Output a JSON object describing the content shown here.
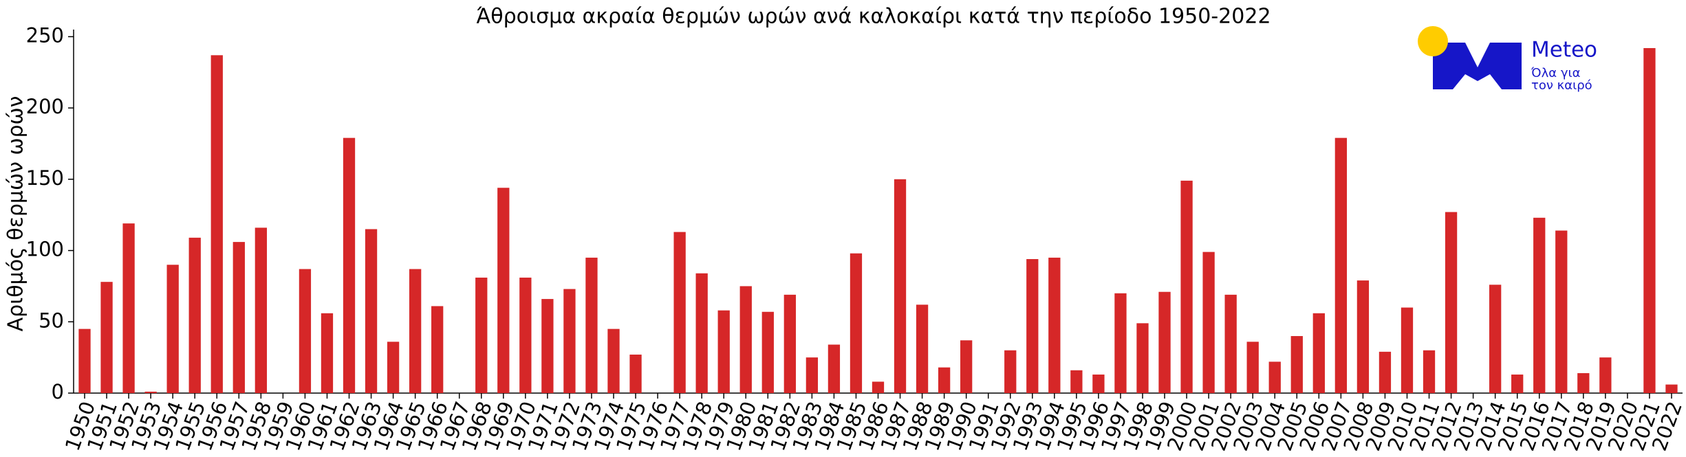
{
  "chart_data": {
    "type": "bar",
    "title": "Άθροισμα ακραία θερμών ωρών ανά καλοκαίρι κατά την περίοδο 1950-2022",
    "ylabel": "Αριθμός θερμών ωρών",
    "categories": [
      "1950",
      "1951",
      "1952",
      "1953",
      "1954",
      "1955",
      "1956",
      "1957",
      "1958",
      "1959",
      "1960",
      "1961",
      "1962",
      "1963",
      "1964",
      "1965",
      "1966",
      "1967",
      "1968",
      "1969",
      "1970",
      "1971",
      "1972",
      "1973",
      "1974",
      "1975",
      "1976",
      "1977",
      "1978",
      "1979",
      "1980",
      "1981",
      "1982",
      "1983",
      "1984",
      "1985",
      "1986",
      "1987",
      "1988",
      "1989",
      "1990",
      "1991",
      "1992",
      "1993",
      "1994",
      "1995",
      "1996",
      "1997",
      "1998",
      "1999",
      "2000",
      "2001",
      "2002",
      "2003",
      "2004",
      "2005",
      "2006",
      "2007",
      "2008",
      "2009",
      "2010",
      "2011",
      "2012",
      "2013",
      "2014",
      "2015",
      "2016",
      "2017",
      "2018",
      "2019",
      "2020",
      "2021",
      "2022"
    ],
    "values": [
      45,
      78,
      119,
      1,
      90,
      109,
      237,
      106,
      116,
      0,
      87,
      56,
      179,
      115,
      36,
      87,
      61,
      0,
      81,
      144,
      81,
      66,
      73,
      95,
      45,
      27,
      0,
      113,
      84,
      58,
      75,
      57,
      69,
      25,
      34,
      98,
      8,
      150,
      62,
      18,
      37,
      0,
      30,
      94,
      95,
      16,
      13,
      70,
      49,
      71,
      149,
      99,
      69,
      36,
      22,
      40,
      56,
      179,
      79,
      29,
      60,
      30,
      127,
      0,
      76,
      13,
      123,
      114,
      14,
      25,
      0,
      242,
      6
    ],
    "color": "#d62728",
    "ylim": [
      0,
      255
    ],
    "yticks": [
      0,
      50,
      100,
      150,
      200,
      250
    ],
    "grid": false,
    "logo": {
      "name": "Meteo",
      "tagline": [
        "Όλα για",
        "τον καιρό"
      ]
    }
  }
}
